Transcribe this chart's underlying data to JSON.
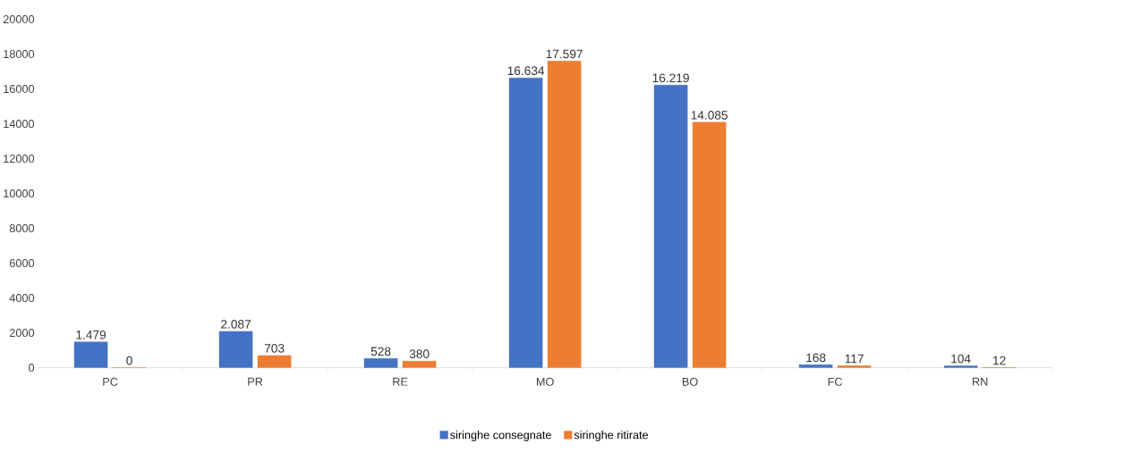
{
  "chart_data": {
    "type": "bar",
    "categories": [
      "PC",
      "PR",
      "RE",
      "MO",
      "BO",
      "FC",
      "RN"
    ],
    "series": [
      {
        "name": "siringhe consegnate",
        "color": "#4472c4",
        "values": [
          1479,
          2087,
          528,
          16634,
          16219,
          168,
          104
        ],
        "value_labels": [
          "1.479",
          "2.087",
          "528",
          "16.634",
          "16.219",
          "168",
          "104"
        ]
      },
      {
        "name": "siringhe ritirate",
        "color": "#ed7d31",
        "values": [
          0,
          703,
          380,
          17597,
          14085,
          117,
          12
        ],
        "value_labels": [
          "0",
          "703",
          "380",
          "17.597",
          "14.085",
          "117",
          "12"
        ]
      }
    ],
    "ylim": [
      0,
      20000
    ],
    "yticks": [
      0,
      2000,
      4000,
      6000,
      8000,
      10000,
      12000,
      14000,
      16000,
      18000,
      20000
    ],
    "legend": "bottom"
  }
}
